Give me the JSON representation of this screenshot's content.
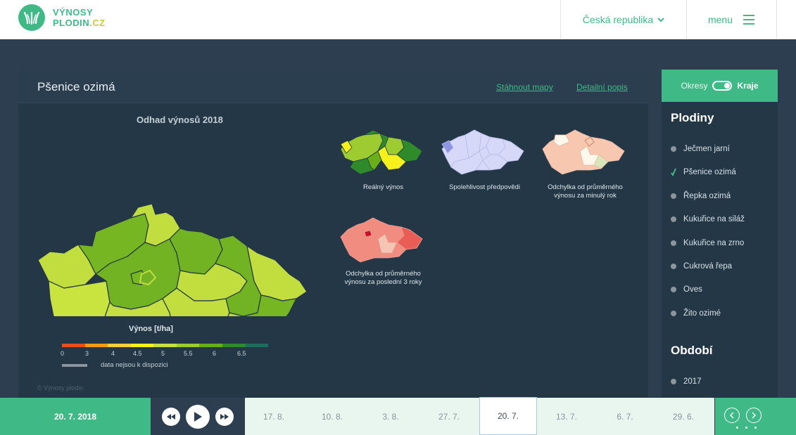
{
  "brand": {
    "line1": "VÝNOSY",
    "line2": "PLODIN",
    "tld": ".CZ"
  },
  "header": {
    "country": "Česká republika",
    "menu": "menu"
  },
  "panel": {
    "title": "Pšenice ozimá",
    "link_download": "Stáhnout mapy",
    "link_detail": "Detailní popis",
    "map_title": "Odhad výnosů 2018",
    "small_maps": [
      {
        "label": "Reálný výnos"
      },
      {
        "label": "Spolehlivost předpovědi"
      },
      {
        "label_line1": "Odchylka od průměrného",
        "label_line2": "výnosu za minulý rok"
      },
      {
        "label_line1": "Odchylka od průměrného",
        "label_line2": "výnosu za poslední 3 roky"
      }
    ],
    "legend": {
      "title": "Výnos [t/ha]",
      "ticks": [
        "0",
        "3",
        "4",
        "4.5",
        "5",
        "5.5",
        "6",
        "6.5"
      ],
      "colors": [
        "#e94e1b",
        "#f39c12",
        "#f5d03a",
        "#f6f11a",
        "#c6e044",
        "#9ccc2f",
        "#6aaf1a",
        "#2f8a2a",
        "#1d6e5c"
      ],
      "no_data": "data nejsou k dispozici"
    },
    "copyright": "© Výnosy plodin"
  },
  "toggle": {
    "option1": "Okresy",
    "option2": "Kraje"
  },
  "sidebar": {
    "crops_heading": "Plodiny",
    "crops": [
      "Ječmen jarní",
      "Pšenice ozimá",
      "Řepka ozimá",
      "Kukuřice na siláž",
      "Kukuřice na zrno",
      "Cukrová řepa",
      "Oves",
      "Žito ozimé"
    ],
    "selected_crop": "Pšenice ozimá",
    "period_heading": "Období",
    "periods": [
      "2017"
    ]
  },
  "timeline": {
    "current_date": "20. 7. 2018",
    "dates": [
      "17. 8.",
      "10. 8.",
      "3. 8.",
      "27. 7.",
      "20. 7.",
      "13. 7.",
      "6. 7.",
      "29. 6."
    ],
    "active_date": "20. 7."
  }
}
